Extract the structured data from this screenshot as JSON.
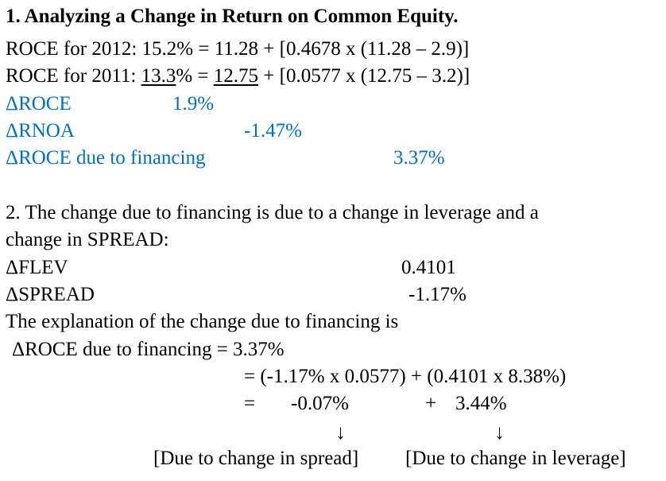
{
  "heading": "1. Analyzing a Change in Return on Common Equity.",
  "roce_2012": {
    "text": "ROCE for 2012: 15.2% = 11.28 + [0.4678 x (11.28 – 2.9)]"
  },
  "roce_2011": {
    "prefix": "ROCE for 2011: ",
    "value": "13.3",
    "mid": "% = ",
    "rnoa": "12.75",
    "suffix": " + [0.0577 x (12.75 – 3.2)]"
  },
  "deltas": {
    "droce_label": "ΔROCE",
    "droce_value": "1.9%",
    "drnoa_label": "ΔRNOA",
    "drnoa_value": "-1.47%",
    "dfin_label": "ΔROCE due to financing",
    "dfin_value": "3.37%"
  },
  "section2": {
    "line1": "2. The change due to financing is due to a change in leverage and a",
    "line2": "change in SPREAD:",
    "dflev_label": "ΔFLEV",
    "dflev_value": "0.4101",
    "dspread_label": "ΔSPREAD",
    "dspread_value": "-1.17%",
    "explanation": "The explanation of the change due to financing is",
    "eq_line1": "ΔROCE due to financing = 3.37%",
    "eq_line2": "= (-1.17% x 0.0577) + (0.4101 x 8.38%)",
    "eq_line3_eq": "=",
    "eq_line3_a": "-0.07%",
    "eq_line3_plus": "+",
    "eq_line3_b": "3.44%",
    "arrow": "↓",
    "label_spread": "[Due to change in spread]",
    "label_leverage": "[Due to change in leverage]"
  }
}
